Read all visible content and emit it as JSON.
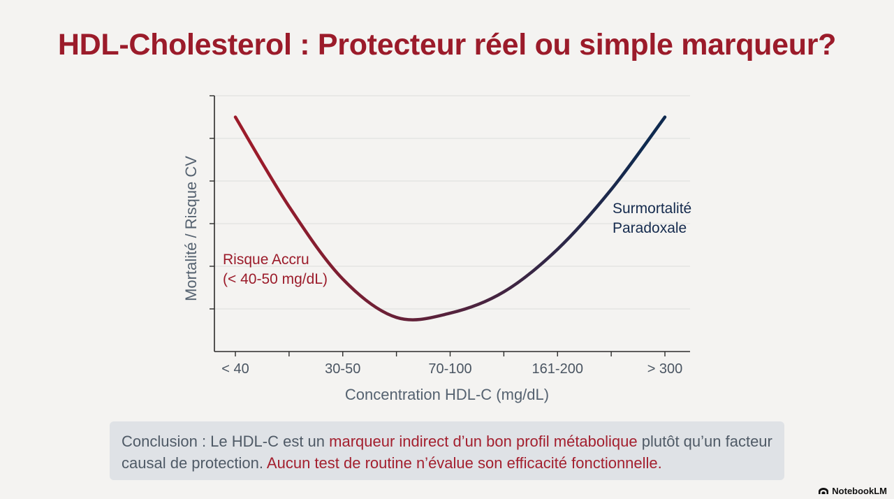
{
  "title": "HDL-Cholesterol : Protecteur réel ou simple marqueur?",
  "chart_data": {
    "type": "line",
    "xlabel": "Concentration HDL-C (mg/dL)",
    "ylabel": "Mortalité / Risque CV",
    "categories": [
      "< 40",
      "30-50",
      "70-100",
      "161-200",
      "> 300"
    ],
    "grid": true,
    "series": [
      {
        "x": [
          0,
          0.5,
          1,
          1.5,
          2,
          2.5,
          3,
          3.5,
          4
        ],
        "values": [
          5.5,
          3.4,
          1.7,
          0.8,
          0.9,
          1.4,
          2.4,
          3.8,
          5.5
        ]
      }
    ],
    "ylim": [
      0,
      6
    ],
    "annotations": [
      {
        "lines": [
          "Risque Accru",
          "(< 40-50 mg/dL)"
        ],
        "color": "#9b1b2a"
      },
      {
        "lines": [
          "Surmortalité",
          "Paradoxale"
        ],
        "color": "#142a4d"
      }
    ],
    "colors": {
      "start": "#9b1b2a",
      "end": "#0f2a4f"
    }
  },
  "conclusion": {
    "part1": "Conclusion : Le HDL-C est un ",
    "part2": "marqueur indirect d’un bon profil métabolique",
    "part3": " plutôt qu’un facteur causal de protection. ",
    "part4": "Aucun test de routine n’évalue son efficacité fonctionnelle."
  },
  "brand": "NotebookLM"
}
